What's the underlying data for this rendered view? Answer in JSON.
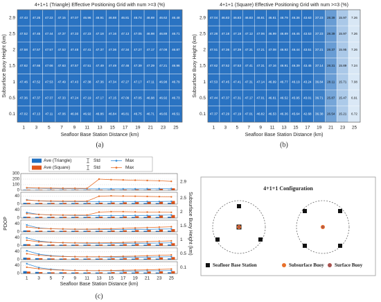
{
  "chart_data": [
    {
      "type": "heatmap",
      "title": "4+1+1 (Triangle) Effective Positioning Grid with num >=3 (%)",
      "x": [
        1,
        3,
        5,
        7,
        9,
        11,
        13,
        15,
        17,
        19,
        21,
        23,
        25
      ],
      "y": [
        2.9,
        2.5,
        2,
        1.5,
        1,
        0.5,
        0.1
      ],
      "xlabel": "Seafloor Base Station Distance (km)",
      "ylabel": "Subsurface Buoy Height (km)",
      "panel_label": "(a)",
      "values": [
        [
          47.43,
          47.25,
          47.22,
          47.15,
          47.07,
          46.96,
          46.91,
          46.88,
          46.81,
          46.74,
          46.69,
          46.62,
          46.48
        ],
        [
          47.52,
          47.45,
          47.44,
          47.37,
          47.33,
          47.23,
          47.18,
          47.16,
          47.13,
          47.05,
          46.98,
          46.89,
          46.71
        ],
        [
          47.58,
          47.57,
          47.57,
          47.53,
          47.48,
          47.41,
          47.37,
          47.36,
          47.34,
          47.27,
          47.17,
          47.08,
          46.87
        ],
        [
          47.62,
          47.66,
          47.66,
          47.63,
          47.57,
          47.51,
          47.49,
          47.49,
          47.46,
          47.39,
          47.29,
          47.21,
          46.96
        ],
        [
          47.46,
          47.52,
          47.53,
          47.49,
          47.43,
          47.38,
          47.36,
          47.34,
          47.27,
          47.17,
          47.11,
          46.98,
          46.79
        ],
        [
          47.36,
          47.37,
          47.37,
          47.33,
          47.24,
          47.19,
          47.17,
          47.15,
          47.09,
          47.05,
          46.98,
          46.92,
          46.73
        ],
        [
          47.02,
          47.13,
          47.11,
          47.06,
          46.96,
          46.92,
          46.86,
          46.84,
          46.81,
          46.75,
          46.71,
          46.65,
          46.51
        ]
      ]
    },
    {
      "type": "heatmap",
      "title": "4+1+1 (Square) Effective Positioning Grid with num >=3 (%)",
      "x": [
        1,
        3,
        5,
        7,
        9,
        11,
        13,
        15,
        17,
        19,
        21,
        23,
        25
      ],
      "y": [
        2.9,
        2.5,
        2,
        1.5,
        1,
        0.5,
        0.1
      ],
      "xlabel": "Seafloor Base Station Distance (km)",
      "ylabel": "Subsurface Buoy Height (km)",
      "panel_label": "(b)",
      "values": [
        [
          47.04,
          46.83,
          46.83,
          46.83,
          46.81,
          46.81,
          46.79,
          46.36,
          43.63,
          37.23,
          28.39,
          15.97,
          7.26
        ],
        [
          47.28,
          47.18,
          47.18,
          47.12,
          47.06,
          46.99,
          46.89,
          46.45,
          43.53,
          37.23,
          28.39,
          15.97,
          7.26
        ],
        [
          47.51,
          47.36,
          47.39,
          47.31,
          47.21,
          47.08,
          46.92,
          46.44,
          43.51,
          37.21,
          28.37,
          15.95,
          7.26
        ],
        [
          47.62,
          47.52,
          47.53,
          47.41,
          47.31,
          47.16,
          46.91,
          46.39,
          43.45,
          37.14,
          28.31,
          15.89,
          7.24
        ],
        [
          47.53,
          47.45,
          47.41,
          47.31,
          47.14,
          46.99,
          46.77,
          46.19,
          43.24,
          36.84,
          28.11,
          15.71,
          7.08
        ],
        [
          47.44,
          47.37,
          47.31,
          47.17,
          47.01,
          46.81,
          46.52,
          45.95,
          43.01,
          36.71,
          25.87,
          15.47,
          6.91
        ],
        [
          47.37,
          47.29,
          47.19,
          47.01,
          46.82,
          46.53,
          46.36,
          45.64,
          42.68,
          36.38,
          26.54,
          15.21,
          6.72
        ]
      ]
    },
    {
      "type": "bar-line-panels",
      "categories": [
        1,
        3,
        5,
        7,
        9,
        11,
        13,
        15,
        17,
        19,
        21,
        23,
        25
      ],
      "ylabel": "PDOP",
      "y2label": "Subsurface Buoy Height (km)",
      "xlabel": "Seafloor Base Station Distance (km)",
      "panel_label": "(c)",
      "error_label": "Std",
      "series": [
        {
          "name": "Ave (Triangle)",
          "color": "#1f6fc0",
          "kind": "bar"
        },
        {
          "name": "Ave (Square)",
          "color": "#e0561b",
          "kind": "bar"
        },
        {
          "name": "Max",
          "color": "#3a8fd8",
          "kind": "line"
        },
        {
          "name": "Max",
          "color": "#e8702a",
          "kind": "line"
        }
      ],
      "panels": [
        {
          "label": 2.9,
          "ylim": [
            0,
            300
          ],
          "yticks": [
            0,
            100,
            200,
            300
          ],
          "values": [
            [
              8,
              7,
              7,
              7,
              7,
              7,
              7,
              7,
              7,
              7,
              7,
              7,
              8
            ],
            [
              9,
              8,
              8,
              8,
              8,
              8,
              9,
              10,
              12,
              15,
              20,
              28,
              35
            ],
            [
              40,
              35,
              30,
              28,
              28,
              27,
              27,
              26,
              26,
              26,
              27,
              28,
              30
            ],
            [
              45,
              40,
              38,
              36,
              35,
              34,
              200,
              190,
              185,
              180,
              175,
              170,
              160
            ]
          ]
        },
        {
          "label": 2.5,
          "ylim": [
            0,
            60
          ],
          "yticks": [
            0,
            40
          ],
          "values": [
            [
              6,
              5,
              5,
              5,
              5,
              5,
              5,
              5,
              5,
              5,
              5,
              5,
              6
            ],
            [
              6,
              6,
              6,
              6,
              6,
              6,
              7,
              8,
              9,
              10,
              12,
              14,
              16
            ],
            [
              22,
              16,
              14,
              13,
              13,
              12,
              12,
              12,
              12,
              12,
              13,
              13,
              14
            ],
            [
              20,
              17,
              16,
              15,
              15,
              15,
              40,
              42,
              41,
              40,
              39,
              38,
              37
            ]
          ]
        },
        {
          "label": 2,
          "ylim": [
            0,
            60
          ],
          "yticks": [
            0,
            40
          ],
          "values": [
            [
              6,
              5,
              5,
              5,
              5,
              5,
              5,
              5,
              5,
              5,
              5,
              5,
              6
            ],
            [
              6,
              6,
              6,
              6,
              6,
              6,
              7,
              7,
              8,
              9,
              11,
              13,
              15
            ],
            [
              28,
              18,
              15,
              14,
              13,
              13,
              12,
              12,
              12,
              13,
              13,
              14,
              15
            ],
            [
              22,
              18,
              16,
              15,
              15,
              15,
              30,
              32,
              32,
              31,
              30,
              30,
              29
            ]
          ]
        },
        {
          "label": 1.5,
          "ylim": [
            0,
            60
          ],
          "yticks": [
            0,
            40
          ],
          "values": [
            [
              7,
              5,
              5,
              5,
              5,
              5,
              5,
              5,
              5,
              5,
              5,
              5,
              6
            ],
            [
              7,
              6,
              6,
              6,
              6,
              6,
              6,
              7,
              8,
              9,
              10,
              12,
              14
            ],
            [
              35,
              20,
              16,
              14,
              13,
              13,
              13,
              12,
              12,
              13,
              13,
              14,
              15
            ],
            [
              25,
              18,
              16,
              15,
              14,
              14,
              15,
              16,
              18,
              20,
              22,
              24,
              26
            ]
          ]
        },
        {
          "label": 1,
          "ylim": [
            0,
            60
          ],
          "yticks": [
            0,
            40
          ],
          "values": [
            [
              8,
              6,
              5,
              5,
              5,
              5,
              5,
              5,
              5,
              5,
              5,
              5,
              6
            ],
            [
              8,
              6,
              6,
              6,
              6,
              6,
              6,
              7,
              8,
              9,
              10,
              12,
              13
            ],
            [
              40,
              24,
              18,
              15,
              14,
              13,
              13,
              13,
              13,
              13,
              13,
              14,
              15
            ],
            [
              28,
              20,
              17,
              16,
              15,
              15,
              15,
              16,
              17,
              19,
              21,
              23,
              25
            ]
          ]
        },
        {
          "label": 0.5,
          "ylim": [
            0,
            60
          ],
          "yticks": [
            0,
            40
          ],
          "values": [
            [
              10,
              7,
              6,
              5,
              5,
              5,
              5,
              5,
              5,
              5,
              5,
              5,
              6
            ],
            [
              9,
              7,
              6,
              6,
              6,
              6,
              6,
              7,
              8,
              9,
              10,
              11,
              13
            ],
            [
              45,
              28,
              20,
              17,
              15,
              14,
              14,
              13,
              13,
              13,
              13,
              14,
              15
            ],
            [
              30,
              22,
              18,
              16,
              15,
              15,
              15,
              16,
              17,
              18,
              20,
              22,
              24
            ]
          ]
        },
        {
          "label": 0.1,
          "ylim": [
            0,
            60
          ],
          "yticks": [
            0,
            40
          ],
          "values": [
            [
              12,
              8,
              6,
              6,
              5,
              5,
              5,
              5,
              5,
              5,
              5,
              5,
              6
            ],
            [
              10,
              7,
              6,
              6,
              6,
              6,
              6,
              7,
              8,
              9,
              10,
              11,
              12
            ],
            [
              50,
              30,
              22,
              18,
              16,
              15,
              14,
              14,
              13,
              13,
              14,
              14,
              15
            ],
            [
              32,
              24,
              19,
              17,
              16,
              15,
              15,
              16,
              17,
              18,
              19,
              21,
              23
            ]
          ]
        }
      ]
    }
  ],
  "diagram": {
    "title": "4+1+1 Configuration",
    "legend": [
      "Seafloor Base Station",
      "Subsurface Buoy",
      "Surface Buoy"
    ]
  }
}
